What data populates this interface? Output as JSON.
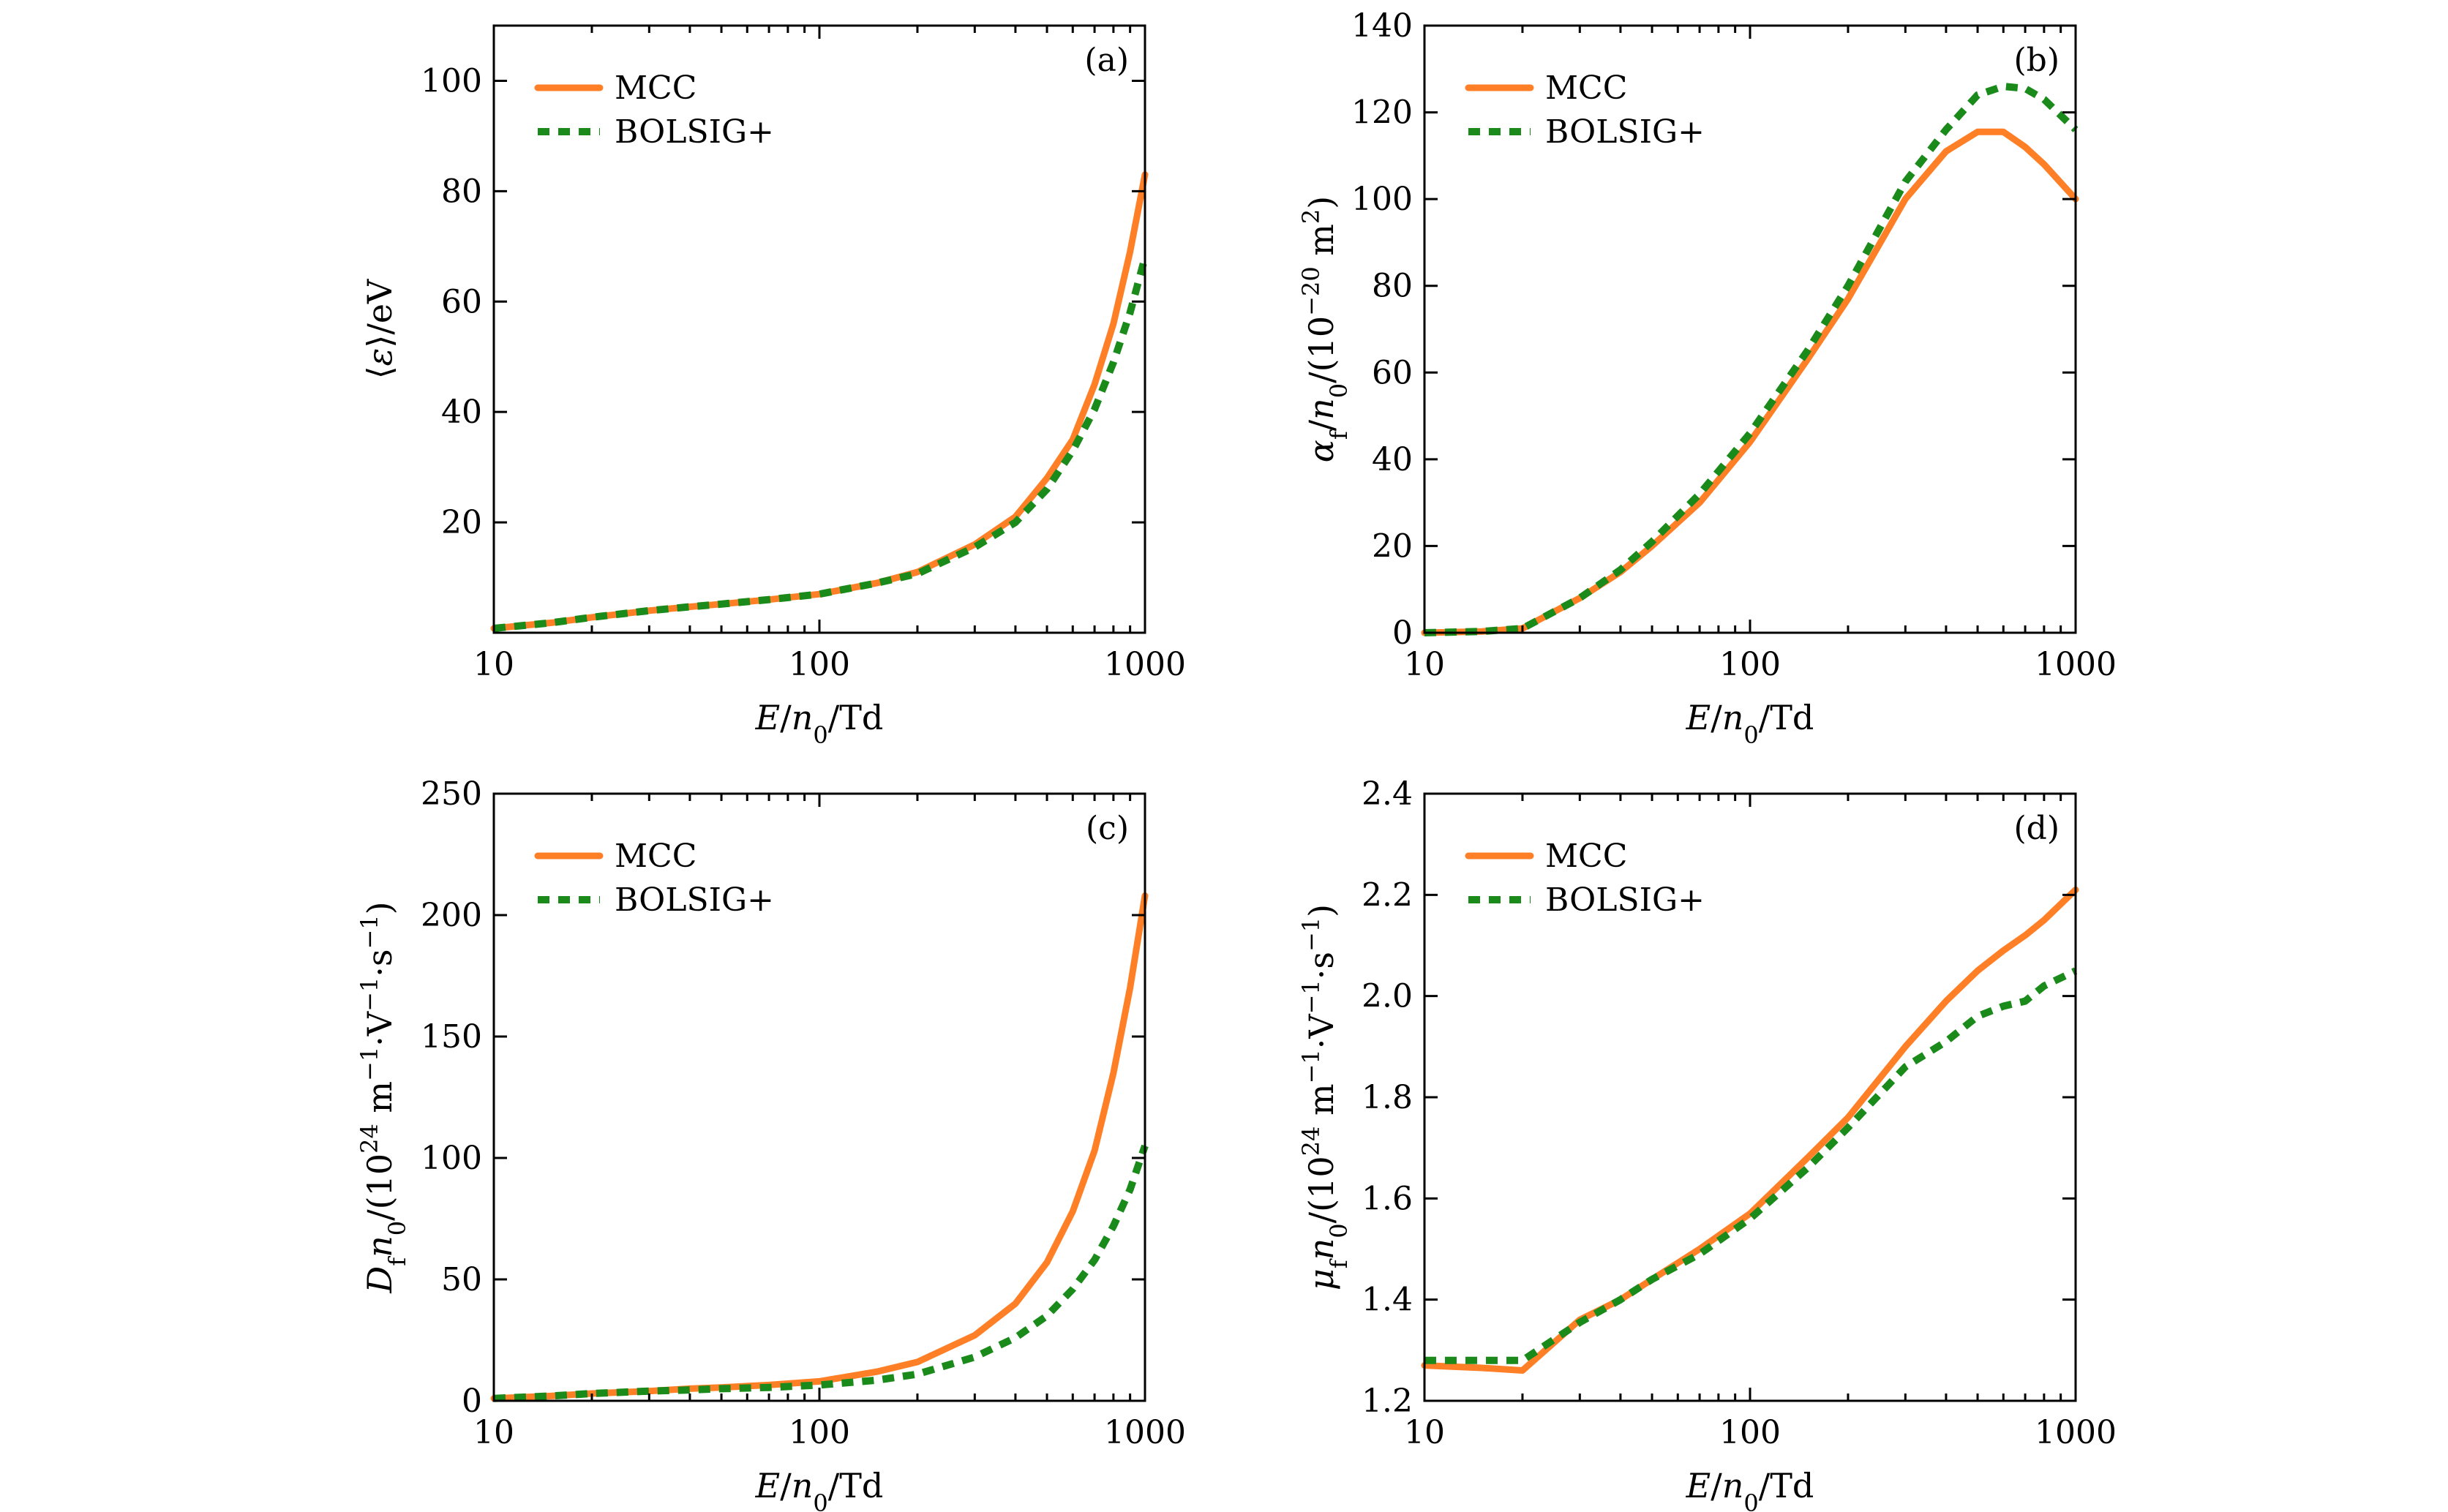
{
  "chart_data": [
    {
      "type": "line",
      "panel_label": "(a)",
      "xlabel_parts": [
        "E",
        "/",
        "n",
        "0",
        "/Td"
      ],
      "ylabel_parts": [
        "⟨",
        "ε",
        "⟩/eV"
      ],
      "xscale": "log",
      "xlim": [
        10,
        1000
      ],
      "ylim": [
        0,
        110
      ],
      "xticks": [
        10,
        100,
        1000
      ],
      "xtick_labels": [
        "10",
        "100",
        "1000"
      ],
      "yticks": [
        20,
        40,
        60,
        80,
        100
      ],
      "ytick_labels": [
        "20",
        "40",
        "60",
        "80",
        "100"
      ],
      "legend": {
        "position": "top-left",
        "entries": [
          "MCC",
          "BOLSIG+"
        ]
      },
      "series": [
        {
          "name": "MCC",
          "color": "#ff7f27",
          "style": "solid",
          "x": [
            10,
            15,
            20,
            30,
            40,
            50,
            70,
            100,
            150,
            200,
            300,
            400,
            500,
            600,
            700,
            800,
            900,
            1000
          ],
          "values": [
            0.8,
            1.8,
            2.8,
            4.0,
            4.7,
            5.2,
            6.0,
            7.0,
            9.0,
            11.0,
            16.0,
            21.0,
            28.0,
            35.0,
            45.0,
            56.0,
            69.0,
            83.0
          ]
        },
        {
          "name": "BOLSIG+",
          "color": "#1a8a1a",
          "style": "dashed",
          "x": [
            10,
            15,
            20,
            30,
            40,
            50,
            70,
            100,
            150,
            200,
            300,
            400,
            500,
            600,
            700,
            800,
            900,
            1000
          ],
          "values": [
            0.8,
            1.8,
            2.8,
            4.0,
            4.7,
            5.2,
            6.0,
            7.0,
            9.0,
            10.7,
            15.5,
            20.0,
            26.0,
            33.0,
            40.5,
            49.0,
            58.0,
            68.0
          ]
        }
      ]
    },
    {
      "type": "line",
      "panel_label": "(b)",
      "xlabel_parts": [
        "E",
        "/",
        "n",
        "0",
        "/Td"
      ],
      "ylabel_parts": [
        "α",
        "f",
        "/",
        "n",
        "0",
        "/(10",
        "−20",
        " m",
        "2",
        ")"
      ],
      "xscale": "log",
      "xlim": [
        10,
        1000
      ],
      "ylim": [
        0,
        140
      ],
      "xticks": [
        10,
        100,
        1000
      ],
      "xtick_labels": [
        "10",
        "100",
        "1000"
      ],
      "yticks": [
        0,
        20,
        40,
        60,
        80,
        100,
        120,
        140
      ],
      "ytick_labels": [
        "0",
        "20",
        "40",
        "60",
        "80",
        "100",
        "120",
        "140"
      ],
      "legend": {
        "position": "top-left",
        "entries": [
          "MCC",
          "BOLSIG+"
        ]
      },
      "series": [
        {
          "name": "MCC",
          "color": "#ff7f27",
          "style": "solid",
          "x": [
            10,
            15,
            20,
            30,
            40,
            50,
            70,
            100,
            150,
            200,
            300,
            400,
            500,
            600,
            700,
            800,
            1000
          ],
          "values": [
            0,
            0.3,
            1.0,
            8.0,
            14.0,
            20.0,
            30.0,
            44.0,
            63.0,
            77.0,
            100.0,
            111.0,
            115.5,
            115.5,
            112.0,
            108.0,
            100.0
          ]
        },
        {
          "name": "BOLSIG+",
          "color": "#1a8a1a",
          "style": "dashed",
          "x": [
            10,
            15,
            20,
            30,
            40,
            50,
            70,
            100,
            150,
            200,
            300,
            400,
            500,
            600,
            700,
            800,
            1000
          ],
          "values": [
            0,
            0.3,
            1.0,
            8.0,
            14.5,
            21.0,
            32.0,
            46.0,
            65.0,
            80.0,
            104.0,
            116.0,
            124.0,
            126.0,
            125.5,
            123.0,
            116.0
          ]
        }
      ]
    },
    {
      "type": "line",
      "panel_label": "(c)",
      "xlabel_parts": [
        "E",
        "/",
        "n",
        "0",
        "/Td"
      ],
      "ylabel_parts": [
        "D",
        "f",
        "n",
        "0",
        "/(10",
        "24",
        " m",
        "−1",
        "·V",
        "−1",
        "·s",
        "−1",
        ")"
      ],
      "xscale": "log",
      "xlim": [
        10,
        1000
      ],
      "ylim": [
        0,
        250
      ],
      "xticks": [
        10,
        100,
        1000
      ],
      "xtick_labels": [
        "10",
        "100",
        "1000"
      ],
      "yticks": [
        0,
        50,
        100,
        150,
        200,
        250
      ],
      "ytick_labels": [
        "0",
        "50",
        "100",
        "150",
        "200",
        "250"
      ],
      "legend": {
        "position": "top-left",
        "entries": [
          "MCC",
          "BOLSIG+"
        ]
      },
      "series": [
        {
          "name": "MCC",
          "color": "#ff7f27",
          "style": "solid",
          "x": [
            10,
            15,
            20,
            30,
            40,
            50,
            70,
            100,
            150,
            200,
            300,
            400,
            500,
            600,
            700,
            800,
            900,
            1000
          ],
          "values": [
            1,
            2,
            3,
            4,
            5,
            5.5,
            6.5,
            8,
            12,
            16,
            27,
            40,
            57,
            78,
            103,
            135,
            170,
            208
          ]
        },
        {
          "name": "BOLSIG+",
          "color": "#1a8a1a",
          "style": "dashed",
          "x": [
            10,
            15,
            20,
            30,
            40,
            50,
            70,
            100,
            150,
            200,
            300,
            400,
            500,
            600,
            700,
            800,
            900,
            1000
          ],
          "values": [
            1,
            2,
            3,
            4,
            4.5,
            5,
            5.5,
            6.5,
            8.5,
            11,
            18,
            26,
            35,
            46,
            58,
            72,
            87,
            105
          ]
        }
      ]
    },
    {
      "type": "line",
      "panel_label": "(d)",
      "xlabel_parts": [
        "E",
        "/",
        "n",
        "0",
        "/Td"
      ],
      "ylabel_parts": [
        "μ",
        "f",
        "n",
        "0",
        "/(10",
        "24",
        " m",
        "−1",
        "·V",
        "−1",
        "·s",
        "−1",
        ")"
      ],
      "xscale": "log",
      "xlim": [
        10,
        1000
      ],
      "ylim": [
        1.2,
        2.4
      ],
      "xticks": [
        10,
        100,
        1000
      ],
      "xtick_labels": [
        "10",
        "100",
        "1000"
      ],
      "yticks": [
        1.2,
        1.4,
        1.6,
        1.8,
        2.0,
        2.2,
        2.4
      ],
      "ytick_labels": [
        "1.2",
        "1.4",
        "1.6",
        "1.8",
        "2.0",
        "2.2",
        "2.4"
      ],
      "legend": {
        "position": "top-left",
        "entries": [
          "MCC",
          "BOLSIG+"
        ]
      },
      "series": [
        {
          "name": "MCC",
          "color": "#ff7f27",
          "style": "solid",
          "x": [
            10,
            15,
            20,
            30,
            40,
            50,
            70,
            100,
            150,
            200,
            300,
            400,
            500,
            600,
            700,
            800,
            1000
          ],
          "values": [
            1.27,
            1.265,
            1.26,
            1.36,
            1.4,
            1.44,
            1.5,
            1.57,
            1.68,
            1.76,
            1.9,
            1.99,
            2.05,
            2.09,
            2.12,
            2.15,
            2.21
          ]
        },
        {
          "name": "BOLSIG+",
          "color": "#1a8a1a",
          "style": "dashed",
          "x": [
            10,
            15,
            20,
            30,
            40,
            50,
            70,
            100,
            150,
            200,
            300,
            400,
            500,
            600,
            700,
            800,
            1000
          ],
          "values": [
            1.28,
            1.28,
            1.28,
            1.355,
            1.4,
            1.44,
            1.49,
            1.56,
            1.66,
            1.74,
            1.86,
            1.91,
            1.96,
            1.98,
            1.99,
            2.02,
            2.05
          ]
        }
      ]
    }
  ]
}
